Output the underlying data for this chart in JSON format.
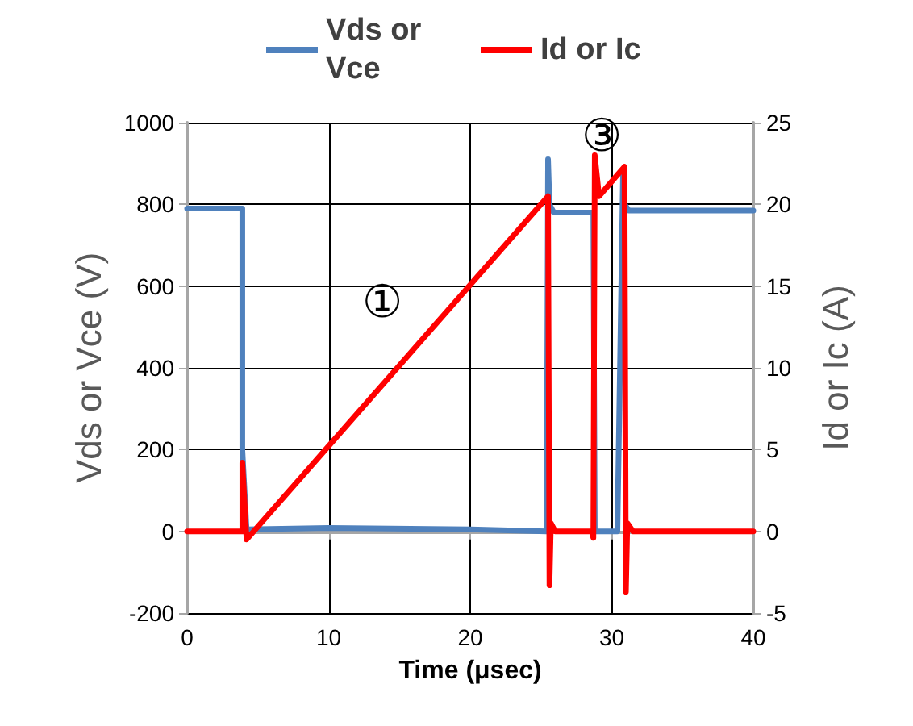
{
  "chart_data": {
    "type": "line",
    "xlabel": "Time (μsec)",
    "ylabel": "Vds or Vce (V)",
    "y2label": "Id or Ic (A)",
    "xlim": [
      0,
      40
    ],
    "xticks": [
      0,
      10,
      20,
      30,
      40
    ],
    "ylim": [
      -200,
      1000
    ],
    "yticks": [
      -200,
      0,
      200,
      400,
      600,
      800,
      1000
    ],
    "y2lim": [
      -5,
      25
    ],
    "y2ticks": [
      -5,
      0,
      5,
      10,
      15,
      20,
      25
    ],
    "grid": true,
    "legend": "top",
    "marker": "none",
    "line_style": "solid",
    "series": [
      {
        "name": "Vds or Vce",
        "color": "#4f81bd",
        "x": [
          0,
          3.9,
          3.9,
          4.2,
          10,
          20,
          25.4,
          25.5,
          25.6,
          25.9,
          28.7,
          28.8,
          30.4,
          30.8,
          30.9,
          31.2,
          40
        ],
        "values": [
          790,
          790,
          200,
          5,
          8,
          5,
          0,
          910,
          800,
          780,
          780,
          0,
          0,
          880,
          800,
          785,
          785
        ]
      },
      {
        "name": "Id or Ic",
        "color": "#ff0000",
        "axis": "y2",
        "x": [
          0,
          3.9,
          3.9,
          4.2,
          25.5,
          25.6,
          25.7,
          26,
          28.6,
          28.7,
          28.8,
          29.1,
          30.9,
          31,
          31.1,
          31.5,
          40
        ],
        "values": [
          0,
          0,
          4.2,
          -0.5,
          20.5,
          -3.3,
          0.5,
          0,
          0,
          -0.4,
          23,
          20.5,
          22.3,
          -3.7,
          0.5,
          0,
          0
        ]
      }
    ],
    "annotations": [
      "①",
      "③"
    ]
  }
}
